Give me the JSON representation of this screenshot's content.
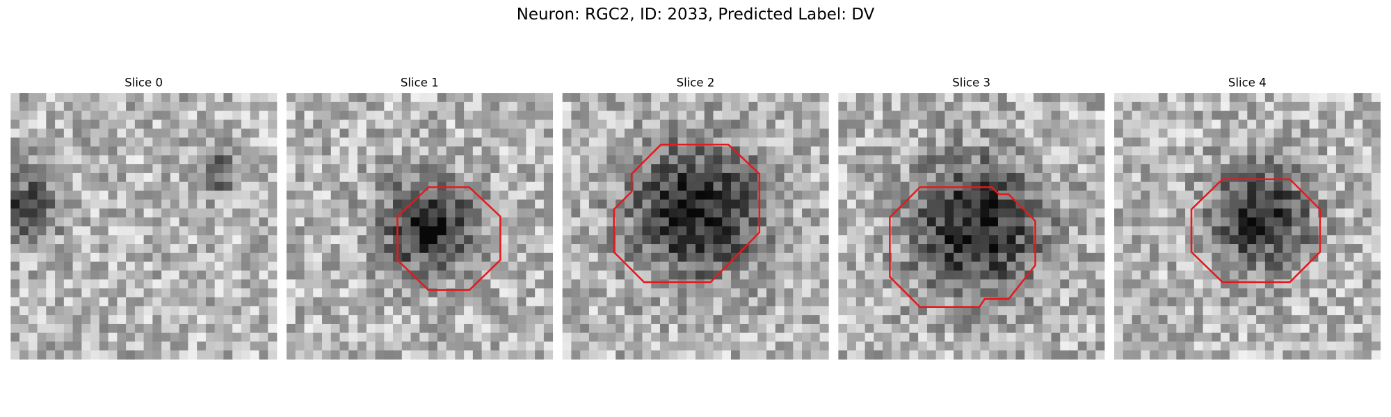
{
  "figure": {
    "title": "Neuron: RGC2, ID: 2033, Predicted Label: DV",
    "panels": [
      {
        "title": "Slice 0"
      },
      {
        "title": "Slice 1"
      },
      {
        "title": "Slice 2"
      },
      {
        "title": "Slice 3"
      },
      {
        "title": "Slice 4"
      }
    ]
  }
}
